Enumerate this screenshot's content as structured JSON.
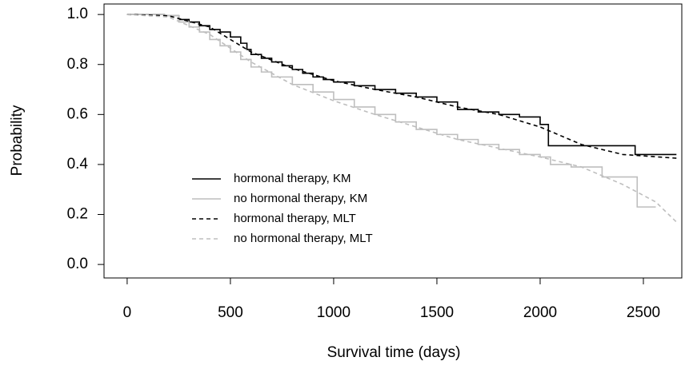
{
  "chart_data": {
    "type": "line",
    "xlabel": "Survival time (days)",
    "ylabel": "Probability",
    "xlim": [
      -112,
      2686
    ],
    "ylim": [
      -0.054,
      1.042
    ],
    "xticks": [
      0,
      500,
      1000,
      1500,
      2000,
      2500
    ],
    "yticks": [
      {
        "value": 0,
        "label": "0.0"
      },
      {
        "value": 0.2,
        "label": "0.2"
      },
      {
        "value": 0.4,
        "label": "0.4"
      },
      {
        "value": 0.6,
        "label": "0.6"
      },
      {
        "value": 0.8,
        "label": "0.8"
      },
      {
        "value": 1,
        "label": "1.0"
      }
    ],
    "series": [
      {
        "name": "hormonal therapy, KM",
        "color": "#000000",
        "step": true,
        "dashed": false,
        "x": [
          0,
          180,
          250,
          300,
          350,
          400,
          450,
          500,
          550,
          580,
          600,
          650,
          700,
          750,
          800,
          850,
          900,
          950,
          1000,
          1100,
          1200,
          1300,
          1400,
          1500,
          1600,
          1700,
          1800,
          1900,
          2000,
          2040,
          2300,
          2460,
          2660
        ],
        "values": [
          1.0,
          0.995,
          0.98,
          0.97,
          0.955,
          0.94,
          0.93,
          0.91,
          0.885,
          0.86,
          0.84,
          0.825,
          0.81,
          0.795,
          0.78,
          0.765,
          0.75,
          0.74,
          0.73,
          0.715,
          0.7,
          0.685,
          0.67,
          0.65,
          0.62,
          0.61,
          0.6,
          0.59,
          0.56,
          0.475,
          0.475,
          0.44,
          0.44
        ]
      },
      {
        "name": "no hormonal therapy, KM",
        "color": "#bebebe",
        "step": true,
        "dashed": false,
        "x": [
          0,
          180,
          250,
          300,
          350,
          400,
          450,
          500,
          550,
          600,
          650,
          700,
          800,
          900,
          1000,
          1100,
          1200,
          1300,
          1400,
          1500,
          1600,
          1700,
          1800,
          1900,
          2000,
          2050,
          2150,
          2300,
          2470,
          2560
        ],
        "values": [
          1.0,
          0.995,
          0.97,
          0.95,
          0.93,
          0.9,
          0.875,
          0.85,
          0.82,
          0.79,
          0.77,
          0.75,
          0.72,
          0.69,
          0.66,
          0.63,
          0.6,
          0.57,
          0.54,
          0.52,
          0.5,
          0.48,
          0.46,
          0.44,
          0.43,
          0.4,
          0.39,
          0.35,
          0.23,
          0.23
        ]
      },
      {
        "name": "hormonal therapy, MLT",
        "color": "#000000",
        "step": false,
        "dashed": true,
        "x": [
          0,
          200,
          400,
          600,
          800,
          1000,
          1200,
          1400,
          1600,
          1800,
          2000,
          2200,
          2400,
          2660
        ],
        "values": [
          1.0,
          0.995,
          0.95,
          0.85,
          0.785,
          0.735,
          0.7,
          0.67,
          0.63,
          0.6,
          0.55,
          0.48,
          0.44,
          0.425
        ]
      },
      {
        "name": "no hormonal therapy, MLT",
        "color": "#bebebe",
        "step": false,
        "dashed": true,
        "x": [
          0,
          200,
          400,
          600,
          800,
          1000,
          1200,
          1400,
          1600,
          1800,
          2000,
          2200,
          2400,
          2560,
          2660
        ],
        "values": [
          1.0,
          0.99,
          0.92,
          0.81,
          0.72,
          0.655,
          0.6,
          0.55,
          0.5,
          0.465,
          0.43,
          0.39,
          0.32,
          0.25,
          0.17
        ]
      }
    ]
  }
}
